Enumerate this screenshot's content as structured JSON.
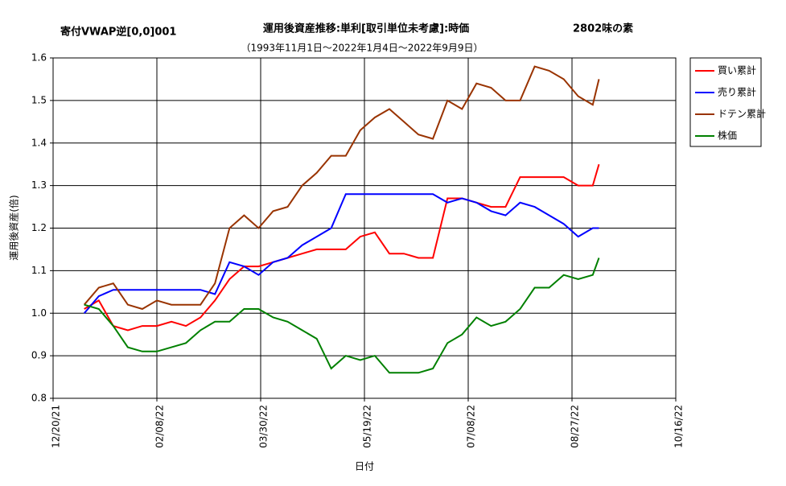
{
  "chart_data": {
    "type": "line",
    "label_left": "寄付VWAP逆[0,0]001",
    "title": "運用後資産推移:単利[取引単位未考慮]:時価",
    "label_right": "2802味の素",
    "subtitle": "（1993年11月1日～2022年1月4日～2022年9月9日）",
    "y_label": "運用後資産(倍)",
    "x_label": "日付",
    "x": [
      "01/04/22",
      "01/11/22",
      "01/18/22",
      "01/25/22",
      "02/01/22",
      "02/08/22",
      "02/15/22",
      "02/22/22",
      "03/01/22",
      "03/08/22",
      "03/15/22",
      "03/22/22",
      "03/29/22",
      "04/05/22",
      "04/12/22",
      "04/19/22",
      "04/26/22",
      "05/03/22",
      "05/10/22",
      "05/17/22",
      "05/24/22",
      "05/31/22",
      "06/07/22",
      "06/14/22",
      "06/21/22",
      "06/28/22",
      "07/05/22",
      "07/12/22",
      "07/19/22",
      "07/26/22",
      "08/02/22",
      "08/09/22",
      "08/16/22",
      "08/23/22",
      "08/30/22",
      "09/06/22",
      "09/09/22"
    ],
    "series": [
      {
        "name": "買い累計",
        "color": "#ff0000",
        "values": [
          1.01,
          1.03,
          0.97,
          0.96,
          0.97,
          0.97,
          0.98,
          0.97,
          0.99,
          1.03,
          1.08,
          1.11,
          1.11,
          1.12,
          1.13,
          1.14,
          1.15,
          1.15,
          1.15,
          1.18,
          1.19,
          1.14,
          1.14,
          1.13,
          1.13,
          1.27,
          1.27,
          1.26,
          1.25,
          1.25,
          1.32,
          1.32,
          1.32,
          1.32,
          1.3,
          1.3,
          1.35
        ]
      },
      {
        "name": "売り累計",
        "color": "#0000ff",
        "values": [
          1.0,
          1.04,
          1.055,
          1.055,
          1.055,
          1.055,
          1.055,
          1.055,
          1.055,
          1.045,
          1.12,
          1.11,
          1.09,
          1.12,
          1.13,
          1.16,
          1.18,
          1.2,
          1.28,
          1.28,
          1.28,
          1.28,
          1.28,
          1.28,
          1.28,
          1.26,
          1.27,
          1.26,
          1.24,
          1.23,
          1.26,
          1.25,
          1.23,
          1.21,
          1.18,
          1.2,
          1.2
        ]
      },
      {
        "name": "ドテン累計",
        "color": "#993300",
        "values": [
          1.02,
          1.06,
          1.07,
          1.02,
          1.01,
          1.03,
          1.02,
          1.02,
          1.02,
          1.07,
          1.2,
          1.23,
          1.2,
          1.24,
          1.25,
          1.3,
          1.33,
          1.37,
          1.37,
          1.43,
          1.46,
          1.48,
          1.45,
          1.42,
          1.41,
          1.5,
          1.48,
          1.54,
          1.53,
          1.5,
          1.5,
          1.58,
          1.57,
          1.55,
          1.51,
          1.49,
          1.55
        ]
      },
      {
        "name": "株価",
        "color": "#008000",
        "values": [
          1.02,
          1.01,
          0.97,
          0.92,
          0.91,
          0.91,
          0.92,
          0.93,
          0.96,
          0.98,
          0.98,
          1.01,
          1.01,
          0.99,
          0.98,
          0.96,
          0.94,
          0.87,
          0.9,
          0.89,
          0.9,
          0.86,
          0.86,
          0.86,
          0.87,
          0.93,
          0.95,
          0.99,
          0.97,
          0.98,
          1.01,
          1.06,
          1.06,
          1.09,
          1.08,
          1.09,
          1.13
        ]
      }
    ],
    "xlim": [
      "12/20/21",
      "10/16/22"
    ],
    "xticks": [
      "12/20/21",
      "02/08/22",
      "03/30/22",
      "05/19/22",
      "07/08/22",
      "08/27/22",
      "10/16/22"
    ],
    "ylim": [
      0.8,
      1.6
    ],
    "yticks": [
      0.8,
      0.9,
      {
        "value": 1,
        "label": "1.0"
      },
      1.1,
      1.2,
      1.3,
      1.4,
      1.5,
      1.6
    ],
    "grid": true
  }
}
